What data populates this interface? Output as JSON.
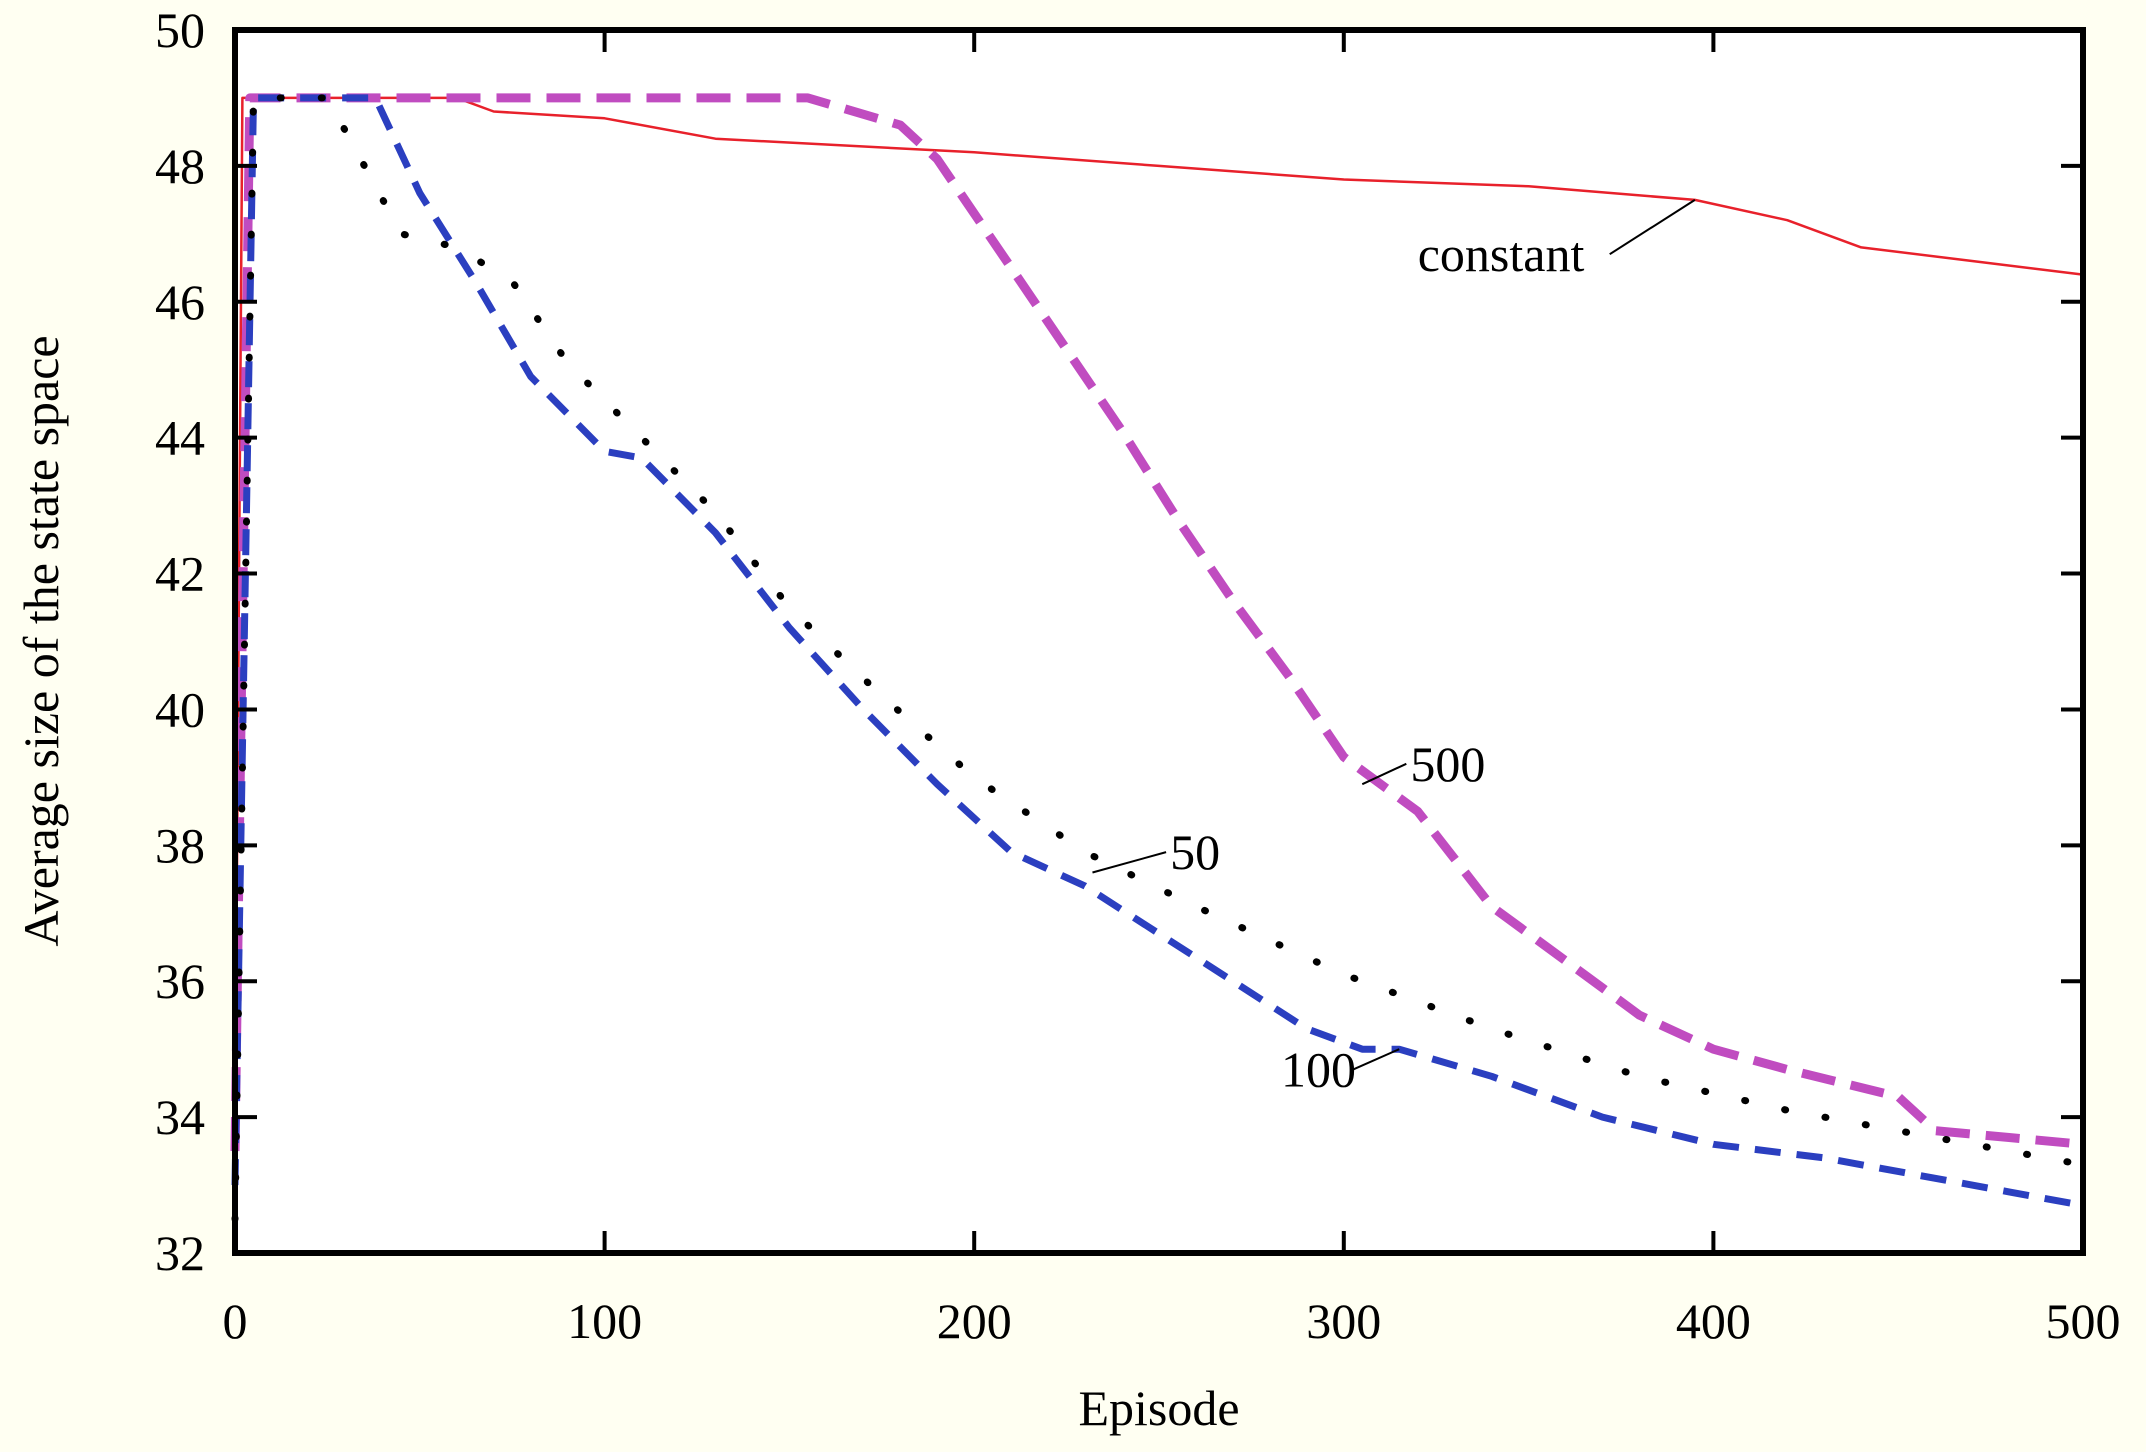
{
  "chart_data": {
    "type": "line",
    "title": "",
    "xlabel": "Episode",
    "ylabel": "Average size of the state space",
    "xlim": [
      0,
      500
    ],
    "ylim": [
      32,
      50
    ],
    "xticks": [
      0,
      100,
      200,
      300,
      400,
      500
    ],
    "yticks": [
      32,
      34,
      36,
      38,
      40,
      42,
      44,
      46,
      48,
      50
    ],
    "xtick_labels": [
      "0",
      "100",
      "200",
      "300",
      "400",
      "500"
    ],
    "ytick_labels": [
      "32",
      "34",
      "36",
      "38",
      "40",
      "42",
      "44",
      "46",
      "48",
      "50"
    ],
    "grid": false,
    "series": [
      {
        "name": "constant",
        "color": "#e8212b",
        "style": "solid",
        "x": [
          0,
          2,
          60,
          70,
          100,
          130,
          200,
          250,
          300,
          350,
          395,
          420,
          440,
          470,
          500
        ],
        "y": [
          33.5,
          49,
          49,
          48.8,
          48.7,
          48.4,
          48.2,
          48.0,
          47.8,
          47.7,
          47.5,
          47.2,
          46.8,
          46.6,
          46.4
        ]
      },
      {
        "name": "500",
        "color": "#c04cc0",
        "style": "dashed-thick",
        "x": [
          0,
          4,
          155,
          180,
          190,
          200,
          210,
          220,
          240,
          255,
          270,
          285,
          300,
          320,
          340,
          360,
          380,
          400,
          420,
          450,
          460,
          480,
          500
        ],
        "y": [
          33.5,
          49,
          49,
          48.6,
          48.1,
          47.3,
          46.5,
          45.7,
          44.1,
          42.8,
          41.6,
          40.5,
          39.3,
          38.5,
          37.1,
          36.3,
          35.5,
          35.0,
          34.7,
          34.3,
          33.8,
          33.7,
          33.6
        ]
      },
      {
        "name": "100",
        "color": "#2b3fc0",
        "style": "dashed",
        "x": [
          0,
          5,
          38,
          50,
          65,
          80,
          100,
          110,
          130,
          150,
          170,
          190,
          210,
          230,
          250,
          270,
          290,
          305,
          315,
          340,
          370,
          400,
          430,
          460,
          480,
          500
        ],
        "y": [
          33.0,
          49,
          49,
          47.6,
          46.3,
          44.9,
          43.8,
          43.7,
          42.6,
          41.2,
          40.0,
          38.9,
          37.9,
          37.4,
          36.7,
          36.0,
          35.3,
          35.0,
          35.0,
          34.6,
          34.0,
          33.6,
          33.4,
          33.1,
          32.9,
          32.7
        ]
      },
      {
        "name": "50",
        "color": "#000000",
        "style": "dotted",
        "x": [
          0,
          5,
          25,
          35,
          45,
          60,
          75,
          90,
          110,
          130,
          150,
          175,
          200,
          230,
          260,
          300,
          340,
          380,
          420,
          460,
          500
        ],
        "y": [
          32.5,
          49,
          49,
          48.0,
          47.0,
          46.8,
          46.3,
          45.1,
          44.0,
          42.9,
          41.5,
          40.2,
          39.0,
          37.9,
          37.1,
          36.1,
          35.3,
          34.6,
          34.1,
          33.7,
          33.3
        ]
      }
    ],
    "annotations": [
      {
        "text": "constant",
        "x": 320,
        "y": 46.7,
        "points_to": [
          395,
          47.5
        ]
      },
      {
        "text": "500",
        "x": 318,
        "y": 39.2,
        "points_to": [
          305,
          38.9
        ]
      },
      {
        "text": "50",
        "x": 253,
        "y": 37.9,
        "points_to": [
          232,
          37.6
        ]
      },
      {
        "text": "100",
        "x": 283,
        "y": 34.7,
        "points_to": [
          315,
          35.0
        ]
      }
    ]
  }
}
